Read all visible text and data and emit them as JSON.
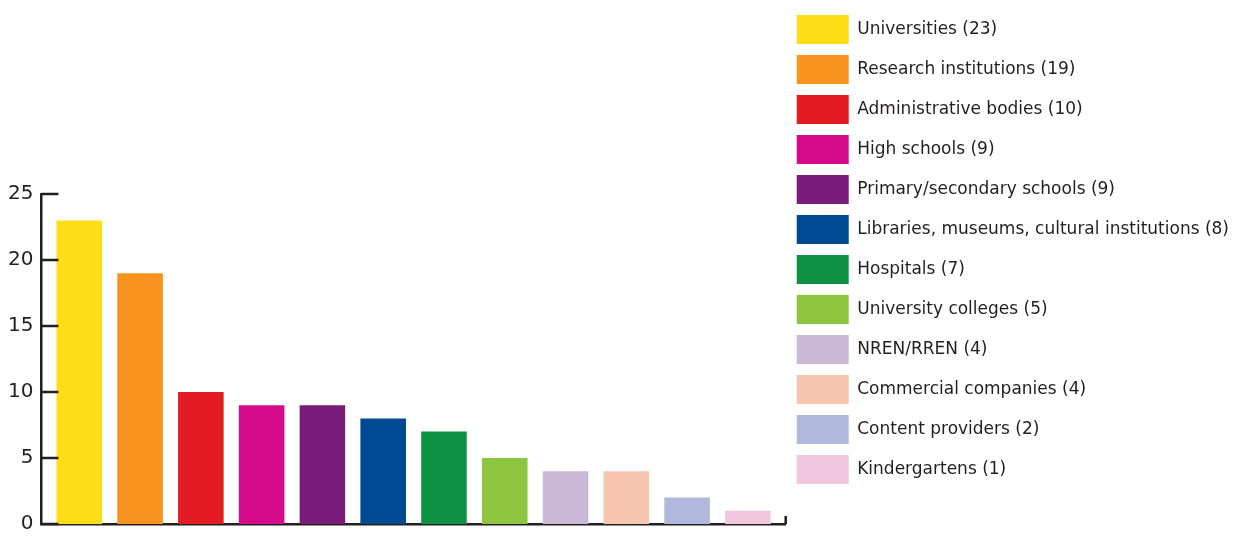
{
  "chart_data": {
    "type": "bar",
    "categories": [
      null
    ],
    "series": [
      {
        "name": "Universities (23)",
        "color": "#fddd18",
        "values": [
          23
        ]
      },
      {
        "name": "Research institutions (19)",
        "color": "#f7931e",
        "values": [
          19
        ]
      },
      {
        "name": "Administrative bodies (10)",
        "color": "#e41b23",
        "values": [
          10
        ]
      },
      {
        "name": "High schools (9)",
        "color": "#d60b8b",
        "values": [
          9
        ]
      },
      {
        "name": "Primary/secondary schools (9)",
        "color": "#7a1c7b",
        "values": [
          9
        ]
      },
      {
        "name": "Libraries, museums, cultural institutions (8)",
        "color": "#004a93",
        "values": [
          8
        ]
      },
      {
        "name": "Hospitals (7)",
        "color": "#0d9244",
        "values": [
          7
        ]
      },
      {
        "name": "University colleges (5)",
        "color": "#8cc63f",
        "values": [
          5
        ]
      },
      {
        "name": "NREN/RREN (4)",
        "color": "#cbb8d6",
        "values": [
          4
        ]
      },
      {
        "name": "Commercial companies (4)",
        "color": "#f8c5b0",
        "values": [
          4
        ]
      },
      {
        "name": "Content providers (2)",
        "color": "#b0b9db",
        "values": [
          2
        ]
      },
      {
        "name": "Kindergartens (1)",
        "color": "#f1c6de",
        "values": [
          1
        ]
      }
    ],
    "ylim": [
      0,
      25
    ],
    "yticks": [
      0,
      5,
      10,
      15,
      20,
      25
    ],
    "tick_labels": "y",
    "legend": "right",
    "grid": false
  }
}
